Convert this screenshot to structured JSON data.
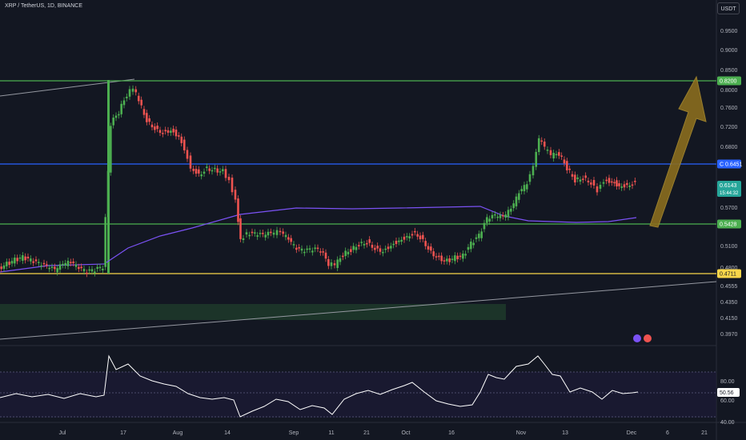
{
  "header": {
    "symbol_line": "XRP / TetherUS, 1D, BINANCE",
    "currency_button": "USDT"
  },
  "colors": {
    "bg": "#131722",
    "up": "#26a69a",
    "down": "#ef5350",
    "up_bright": "#4caf50",
    "ma": "#7b52f5",
    "rsi": "#ffffff",
    "green_line": "#4caf50",
    "blue_line": "#2962ff",
    "yellow_line": "#f9d64a",
    "arrow": "#8a6d1e"
  },
  "price_axis": {
    "ticks": [
      "0.9500",
      "0.9000",
      "0.8500",
      "0.8000",
      "0.7600",
      "0.7200",
      "0.6800",
      "0.5700",
      "0.5100",
      "0.4800",
      "0.4555",
      "0.4350",
      "0.4150",
      "0.3970"
    ]
  },
  "price_tags": [
    {
      "label": "0.8200",
      "color": "#4caf50"
    },
    {
      "label": "C 0.6451",
      "color": "#2962ff"
    },
    {
      "label": "0.6143",
      "sub": "15:44:32",
      "color": "#26a69a"
    },
    {
      "label": "0.5428",
      "color": "#4caf50"
    },
    {
      "label": "0.4711",
      "color": "#f9d64a"
    }
  ],
  "rsi_axis": {
    "ticks": [
      "80.00",
      "60.00",
      "40.00"
    ],
    "value_tag": "50.56"
  },
  "x_axis": {
    "labels": [
      "Jul",
      "17",
      "Aug",
      "14",
      "Sep",
      "11",
      "21",
      "Oct",
      "16",
      "Nov",
      "13",
      "Dec",
      "6",
      "21"
    ]
  },
  "chart_data": {
    "type": "candlestick",
    "price_levels": [
      {
        "name": "resistance",
        "value": 0.82
      },
      {
        "name": "close",
        "value": 0.6451
      },
      {
        "name": "support",
        "value": 0.5428
      },
      {
        "name": "base",
        "value": 0.4711
      }
    ],
    "last_price": 0.6143,
    "rsi_last": 50.56,
    "rsi_levels": [
      70,
      50,
      30
    ]
  }
}
